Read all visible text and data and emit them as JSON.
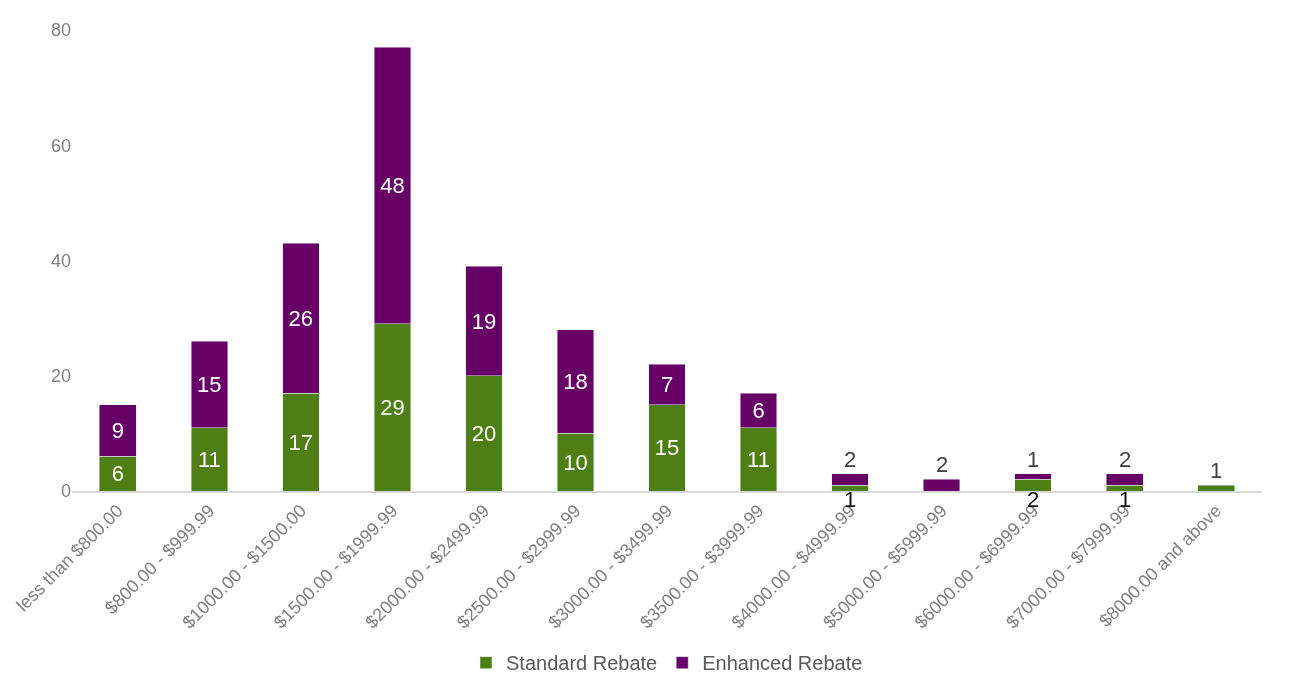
{
  "chart_data": {
    "type": "bar",
    "stacked": true,
    "categories": [
      "less than $800.00",
      "$800.00 - $999.99",
      "$1000.00 - $1500.00",
      "$1500.00 - $1999.99",
      "$2000.00 - $2499.99",
      "$2500.00 - $2999.99",
      "$3000.00 - $3499.99",
      "$3500.00 - $3999.99",
      "$4000.00 - $4999.99",
      "$5000.00 - $5999.99",
      "$6000.00 - $6999.99",
      "$7000.00 - $7999.99",
      "$8000.00 and above"
    ],
    "series": [
      {
        "name": "Standard Rebate",
        "color": "#4f7f14",
        "values": [
          6,
          11,
          17,
          29,
          20,
          10,
          15,
          11,
          1,
          null,
          2,
          1,
          1
        ],
        "value_labels": [
          "6",
          "11",
          "17",
          "29",
          "20",
          "10",
          "15",
          "11",
          "1",
          null,
          "2",
          "1",
          "1"
        ]
      },
      {
        "name": "Enhanced Rebate",
        "color": "#660066",
        "values": [
          9,
          15,
          26,
          48,
          19,
          18,
          7,
          6,
          2,
          2,
          1,
          2,
          null
        ],
        "value_labels": [
          "9",
          "15",
          "26",
          "48",
          "19",
          "18",
          "7",
          "6",
          "2",
          "2",
          "1",
          "2",
          null
        ]
      }
    ],
    "ylim": [
      0,
      80
    ],
    "yticks": [
      0,
      20,
      40,
      60,
      80
    ],
    "grid": false,
    "legend": "bottom"
  }
}
